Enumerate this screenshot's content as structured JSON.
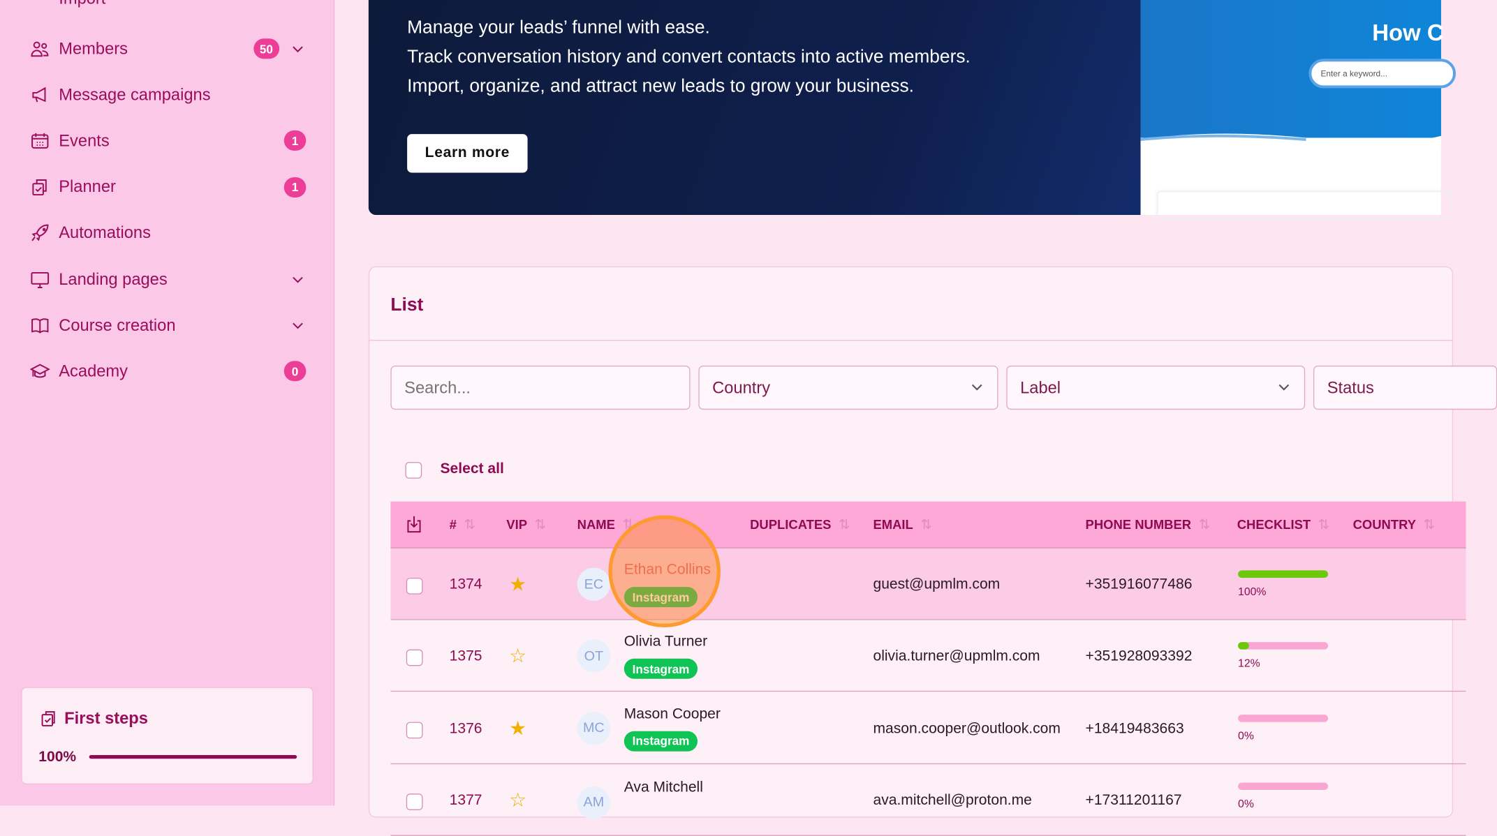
{
  "sidebar": {
    "partial_top": "Import",
    "items": [
      {
        "label": "Members",
        "icon": "users-icon",
        "badge": "50",
        "chevron": true
      },
      {
        "label": "Message campaigns",
        "icon": "megaphone-icon"
      },
      {
        "label": "Events",
        "icon": "calendar-icon",
        "badge": "1"
      },
      {
        "label": "Planner",
        "icon": "clipboard-check-icon",
        "badge": "1"
      },
      {
        "label": "Automations",
        "icon": "rocket-icon"
      },
      {
        "label": "Landing pages",
        "icon": "monitor-icon",
        "chevron": true
      },
      {
        "label": "Course creation",
        "icon": "book-icon",
        "chevron": true
      },
      {
        "label": "Academy",
        "icon": "graduation-cap-icon",
        "badge": "0"
      }
    ],
    "first_steps": {
      "title": "First steps",
      "percent_label": "100%",
      "progress": 1.0
    }
  },
  "banner": {
    "lines": [
      "Manage your leads’ funnel with ease.",
      "Track conversation history and convert contacts into active members.",
      "Import, organize, and attract new leads to grow your business."
    ],
    "button": "Learn more",
    "preview_title": "How C",
    "preview_search_placeholder": "Enter a keyword..."
  },
  "list": {
    "title": "List",
    "search_placeholder": "Search...",
    "filters": [
      "Country",
      "Label",
      "Status"
    ],
    "select_all": "Select all",
    "columns": [
      "#",
      "VIP",
      "NAME",
      "DUPLICATES",
      "EMAIL",
      "PHONE NUMBER",
      "CHECKLIST",
      "COUNTRY"
    ],
    "rows": [
      {
        "id": "1374",
        "vip": true,
        "initials": "EC",
        "name": "Ethan Collins",
        "tag": "Instagram",
        "email": "guest@upmlm.com",
        "phone": "+351916077486",
        "checklist": "100%",
        "progress": 100
      },
      {
        "id": "1375",
        "vip": false,
        "initials": "OT",
        "name": "Olivia Turner",
        "tag": "Instagram",
        "email": "olivia.turner@upmlm.com",
        "phone": "+351928093392",
        "checklist": "12%",
        "progress": 12
      },
      {
        "id": "1376",
        "vip": true,
        "initials": "MC",
        "name": "Mason Cooper",
        "tag": "Instagram",
        "email": "mason.cooper@outlook.com",
        "phone": "+18419483663",
        "checklist": "0%",
        "progress": 0
      },
      {
        "id": "1377",
        "vip": false,
        "initials": "AM",
        "name": "Ava Mitchell",
        "tag": "",
        "email": "ava.mitchell@proton.me",
        "phone": "+17311201167",
        "checklist": "0%",
        "progress": 0
      }
    ]
  },
  "colors": {
    "accent": "#ec3d97",
    "text": "#9a0c5c",
    "header": "#fda8d6",
    "tag": "#0fc454",
    "highlight": "#ff8c1a"
  }
}
